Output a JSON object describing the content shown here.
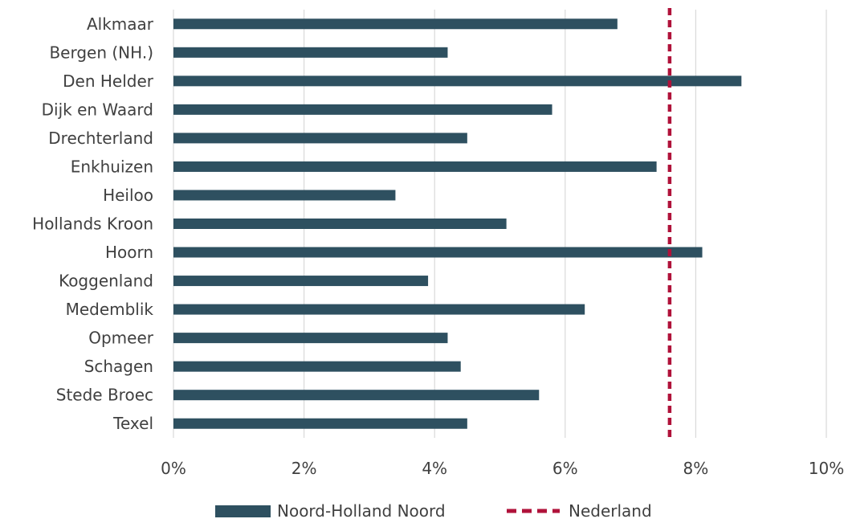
{
  "chart_data": {
    "type": "bar",
    "orientation": "horizontal",
    "categories": [
      "Alkmaar",
      "Bergen (NH.)",
      "Den Helder",
      "Dijk en Waard",
      "Drechterland",
      "Enkhuizen",
      "Heiloo",
      "Hollands Kroon",
      "Hoorn",
      "Koggenland",
      "Medemblik",
      "Opmeer",
      "Schagen",
      "Stede Broec",
      "Texel"
    ],
    "series": [
      {
        "name": "Noord-Holland Noord",
        "color": "#2e5060",
        "values": [
          6.8,
          4.2,
          8.7,
          5.8,
          4.5,
          7.4,
          3.4,
          5.1,
          8.1,
          3.9,
          6.3,
          4.2,
          4.4,
          5.6,
          4.5
        ]
      }
    ],
    "reference_lines": [
      {
        "name": "Nederland",
        "value": 7.6,
        "style": "dashed",
        "color": "#b0123a"
      }
    ],
    "xlim": [
      0,
      10
    ],
    "xticks": [
      0,
      2,
      4,
      6,
      8,
      10
    ],
    "xtick_labels": [
      "0%",
      "2%",
      "4%",
      "6%",
      "8%",
      "10%"
    ],
    "grid": "vertical",
    "legend_position": "bottom-center",
    "title": "",
    "xlabel": "",
    "ylabel": ""
  }
}
